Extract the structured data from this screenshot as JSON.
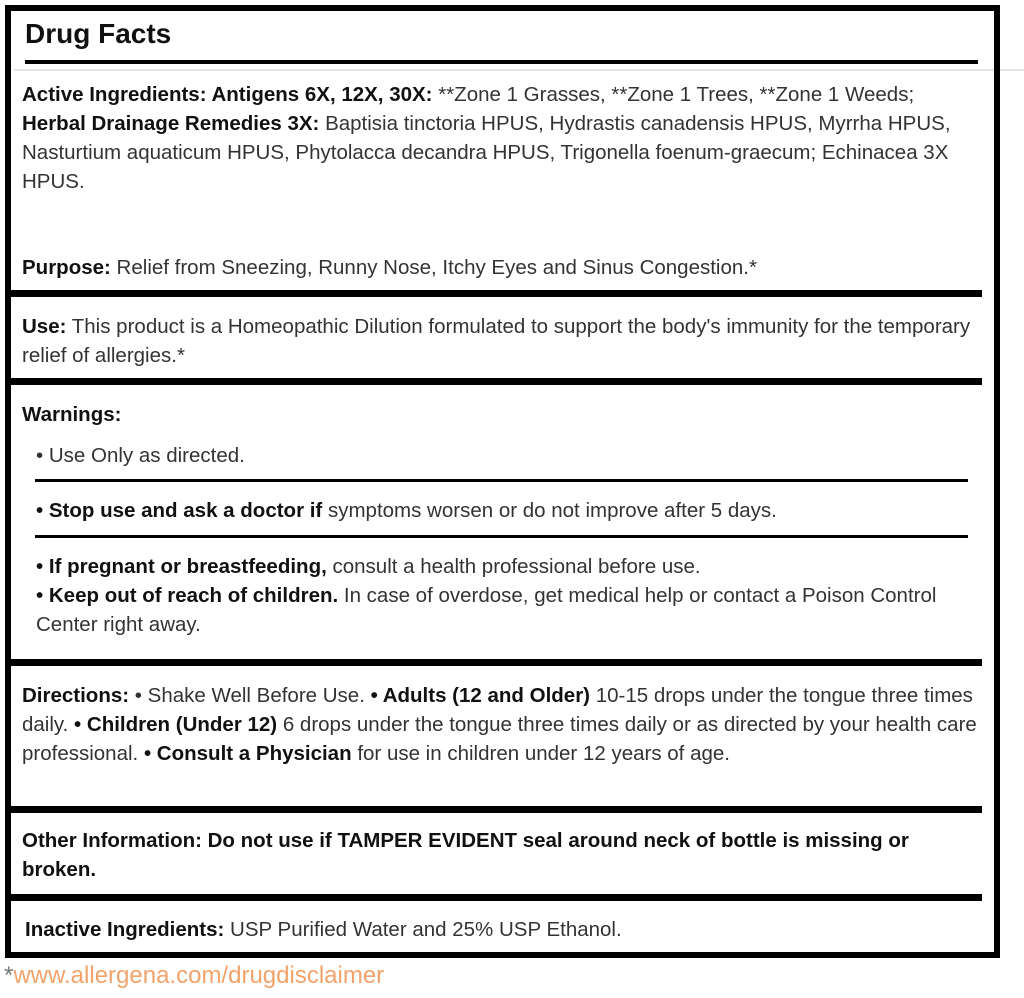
{
  "title": "Drug Facts",
  "active": {
    "label": "Active Ingredients: Antigens 6X, 12X, 30X:",
    "text": " **Zone 1 Grasses, **Zone 1 Trees, **Zone 1 Weeds;"
  },
  "herbal": {
    "label": "Herbal Drainage Remedies 3X:",
    "text": " Baptisia tinctoria HPUS, Hydrastis canadensis HPUS, Myrrha HPUS, Nasturtium aquaticum HPUS, Phytolacca decandra HPUS, Trigonella foenum-graecum; Echinacea 3X HPUS."
  },
  "purpose": {
    "label": "Purpose:",
    "text": " Relief from Sneezing, Runny Nose, Itchy Eyes and Sinus Congestion.*"
  },
  "use": {
    "label": "Use:",
    "text": " This product is a Homeopathic Dilution formulated to support the body's immunity for the temporary relief of allergies.*"
  },
  "warnings": {
    "heading": "Warnings:",
    "item1": "• Use Only as directed.",
    "item2_bold": "• Stop use and ask a doctor if",
    "item2_text": " symptoms worsen or do not improve after 5 days.",
    "item3_bold": "• If pregnant or breastfeeding,",
    "item3_text": " consult a health professional before use.",
    "item4_bold": "• Keep out of reach of children.",
    "item4_text": " In case of overdose, get medical help or contact a Poison Control Center right away."
  },
  "directions": {
    "label": "Directions:",
    "t1": " • Shake Well Before Use. ",
    "b2": "• Adults (12 and Older)",
    "t2": " 10-15 drops under the tongue three times daily. ",
    "b3": "• Children (Under 12)",
    "t3": " 6 drops under the tongue three times daily or as directed by your health care professional. ",
    "b4": "• Consult a Physician",
    "t4": " for use in children under 12 years of age."
  },
  "other": {
    "text": "Other Information: Do not use if TAMPER EVIDENT seal around neck of bottle is missing or broken."
  },
  "inactive": {
    "label": "Inactive Ingredients:",
    "text": " USP Purified Water and 25% USP Ethanol."
  },
  "footer": {
    "star": "*",
    "link": "www.allergena.com/drugdisclaimer"
  },
  "colors": {
    "link": "#f2a36b",
    "border": "#000000"
  }
}
